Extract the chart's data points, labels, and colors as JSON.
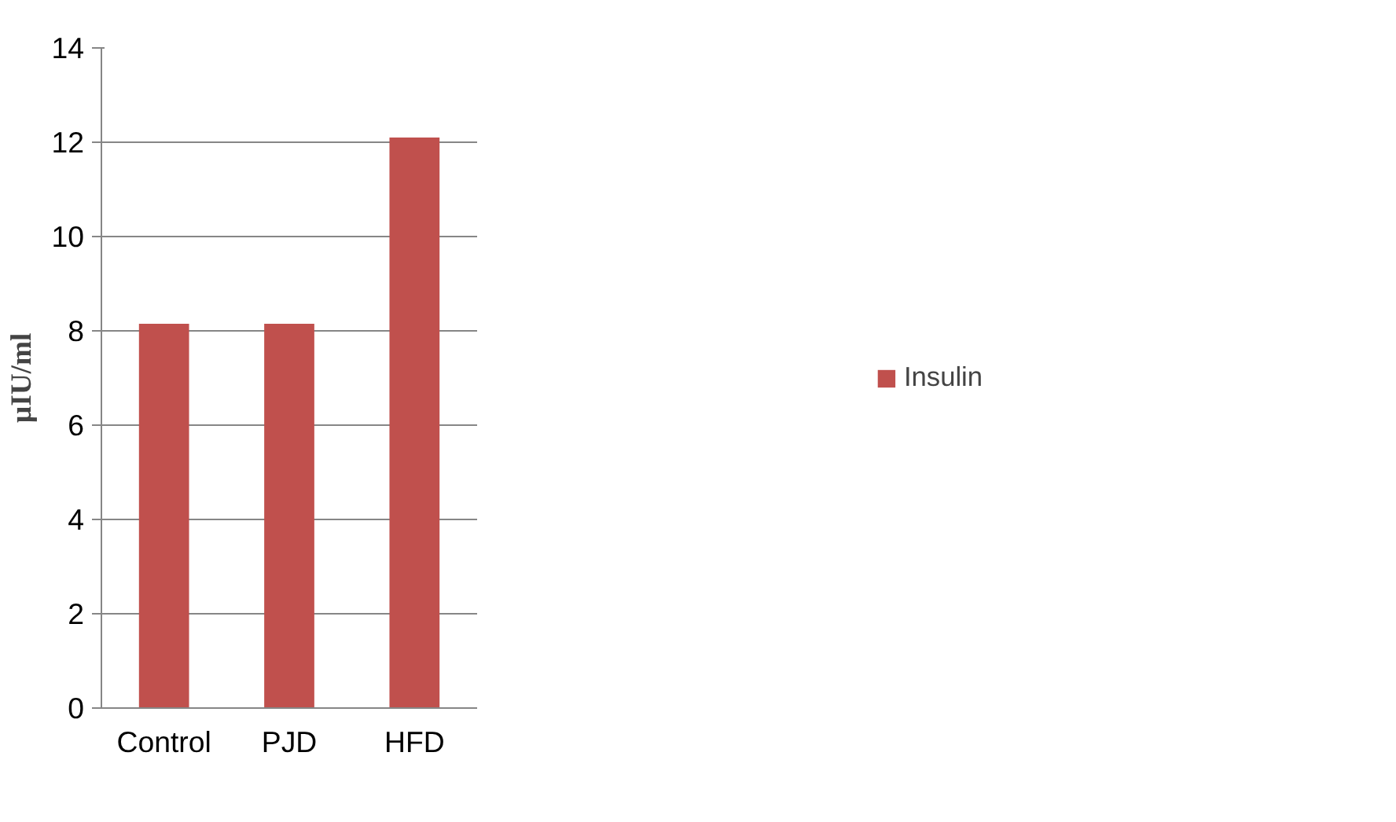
{
  "chart_data": {
    "type": "bar",
    "ylabel": "µIU/ml",
    "categories": [
      "Control",
      "PJD",
      "HFD"
    ],
    "series": [
      {
        "name": "Insulin",
        "color": "#c0504d",
        "values": [
          8.15,
          8.15,
          12.1
        ]
      }
    ],
    "ylim": [
      0,
      14
    ],
    "yticks": [
      0,
      2,
      4,
      6,
      8,
      10,
      12,
      14
    ],
    "grid": "y",
    "legend": "right"
  }
}
